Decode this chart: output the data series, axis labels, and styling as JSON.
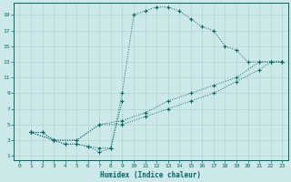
{
  "xlabel": "Humidex (Indice chaleur)",
  "bg_color": "#cce8e8",
  "line_color": "#006666",
  "grid_color": "#b0d4d4",
  "xlim": [
    -0.5,
    23.5
  ],
  "ylim": [
    0.5,
    20.5
  ],
  "xticks": [
    0,
    1,
    2,
    3,
    4,
    5,
    6,
    7,
    8,
    9,
    10,
    11,
    12,
    13,
    14,
    15,
    16,
    17,
    18,
    19,
    20,
    21,
    22,
    23
  ],
  "yticks": [
    1,
    3,
    5,
    7,
    9,
    11,
    13,
    15,
    17,
    19
  ],
  "curve_upper_x": [
    1,
    2,
    3,
    4,
    5,
    6,
    7,
    8,
    9,
    10,
    11,
    12,
    13,
    14,
    15,
    16,
    17,
    18,
    19,
    20,
    21,
    22,
    23
  ],
  "curve_upper_y": [
    4,
    4,
    3,
    2.5,
    2.5,
    2.2,
    2,
    2,
    9,
    19,
    19.5,
    20,
    20,
    19.5,
    18.5,
    17.5,
    17,
    15,
    14.5,
    13,
    13,
    13,
    13
  ],
  "curve_zigzag_x": [
    1,
    2,
    3,
    4,
    5,
    6,
    7,
    8,
    9
  ],
  "curve_zigzag_y": [
    4,
    4,
    3,
    2.5,
    2.5,
    2.2,
    1.5,
    2,
    8
  ],
  "curve_line1_x": [
    1,
    3,
    5,
    7,
    9,
    11,
    13,
    15,
    17,
    19,
    21,
    22,
    23
  ],
  "curve_line1_y": [
    4,
    3,
    3,
    5,
    5.5,
    6.5,
    8,
    9,
    10,
    11,
    13,
    13,
    13
  ],
  "curve_line2_x": [
    1,
    3,
    5,
    7,
    9,
    11,
    13,
    15,
    17,
    19,
    21,
    22,
    23
  ],
  "curve_line2_y": [
    4,
    3,
    3,
    5,
    5,
    6,
    7,
    8,
    9,
    10.5,
    12,
    13,
    13
  ]
}
